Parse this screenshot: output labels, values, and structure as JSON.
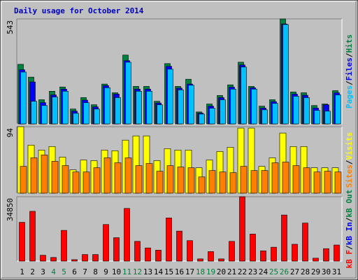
{
  "chart_data": [
    {
      "type": "bar",
      "title": "Daily usage for October 2014",
      "ylim": [
        0,
        543
      ],
      "yticks": [
        543
      ],
      "legend_separator": "/",
      "series": [
        {
          "name": "Hits",
          "color": "#008040",
          "values": [
            308,
            242,
            125,
            169,
            191,
            77,
            136,
            99,
            206,
            161,
            356,
            194,
            194,
            117,
            312,
            194,
            231,
            62,
            103,
            147,
            202,
            319,
            194,
            92,
            125,
            543,
            165,
            161,
            95,
            103,
            172
          ]
        },
        {
          "name": "Files",
          "color": "#0000FF",
          "values": [
            280,
            217,
            110,
            150,
            180,
            66,
            123,
            88,
            198,
            154,
            327,
            180,
            180,
            108,
            298,
            185,
            206,
            56,
            92,
            136,
            190,
            305,
            187,
            82,
            115,
            517,
            154,
            148,
            82,
            99,
            161
          ]
        },
        {
          "name": "Pages",
          "color": "#00C0FF",
          "values": [
            268,
            117,
            95,
            139,
            169,
            55,
            110,
            77,
            187,
            136,
            319,
            169,
            169,
            99,
            283,
            176,
            200,
            51,
            81,
            125,
            180,
            294,
            180,
            73,
            106,
            514,
            143,
            136,
            70,
            66,
            150
          ]
        }
      ]
    },
    {
      "type": "bar",
      "ylim": [
        0,
        94
      ],
      "yticks": [
        94
      ],
      "legend_separator": "/",
      "series": [
        {
          "name": "Visits",
          "color": "#FFFF00",
          "values": [
            94,
            68,
            61,
            66,
            51,
            33,
            47,
            46,
            61,
            60,
            75,
            81,
            81,
            46,
            63,
            61,
            61,
            36,
            47,
            59,
            65,
            92,
            92,
            38,
            50,
            85,
            66,
            66,
            36,
            36,
            36
          ]
        },
        {
          "name": "Sites",
          "color": "#FF8000",
          "values": [
            38,
            50,
            54,
            45,
            39,
            30,
            30,
            36,
            50,
            43,
            50,
            39,
            42,
            31,
            39,
            37,
            36,
            23,
            32,
            30,
            29,
            38,
            32,
            32,
            43,
            44,
            39,
            36,
            30,
            31,
            30
          ]
        }
      ]
    },
    {
      "type": "bar",
      "ylim": [
        0,
        34850
      ],
      "yticks": [
        34850
      ],
      "legend_separator": "/",
      "categories": [
        "1",
        "2",
        "3",
        "4",
        "5",
        "6",
        "7",
        "8",
        "9",
        "10",
        "11",
        "12",
        "13",
        "14",
        "15",
        "16",
        "17",
        "18",
        "19",
        "20",
        "21",
        "22",
        "23",
        "24",
        "25",
        "26",
        "27",
        "28",
        "29",
        "30",
        "31"
      ],
      "category_colors": [
        "#000000",
        "#000000",
        "#000000",
        "#008040",
        "#008040",
        "#000000",
        "#000000",
        "#000000",
        "#000000",
        "#000000",
        "#008040",
        "#008040",
        "#000000",
        "#000000",
        "#000000",
        "#000000",
        "#000000",
        "#008040",
        "#008040",
        "#000000",
        "#000000",
        "#000000",
        "#000000",
        "#000000",
        "#008040",
        "#008040",
        "#000000",
        "#000000",
        "#000000",
        "#000000",
        "#000000"
      ],
      "series": [
        {
          "name": "kB F",
          "color": "#FF0000",
          "values": [
            20990,
            26930,
            3170,
            1980,
            16630,
            790,
            3560,
            3560,
            19800,
            12670,
            28510,
            10690,
            7130,
            5940,
            23370,
            16240,
            11090,
            1190,
            5150,
            1190,
            10690,
            34850,
            14650,
            5540,
            7520,
            24950,
            9110,
            20590,
            1580,
            6730,
            8710
          ]
        }
      ],
      "legend_extra": [
        {
          "name": "kB In",
          "color": "#0000FF"
        },
        {
          "name": "kB Out",
          "color": "#008040"
        }
      ]
    }
  ]
}
